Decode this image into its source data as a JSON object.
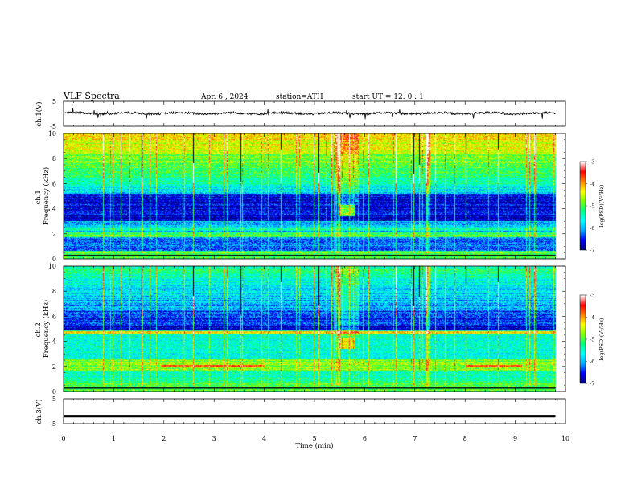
{
  "header": {
    "title": "VLF  Spectra",
    "date": "Apr. 6  , 2024",
    "station": "station=ATH",
    "start_ut": "start  UT  =    12: 0   : 1"
  },
  "chart_data": [
    {
      "type": "line",
      "ylabel": "ch.1(V)",
      "ylim": [
        -5,
        5
      ],
      "yticks": [
        "5",
        "-5"
      ],
      "xlim": [
        0,
        10
      ],
      "waveform_level": 0.2
    },
    {
      "type": "heatmap",
      "ylabel": "ch.1\nFrequency (kHz)",
      "ylim": [
        0,
        10
      ],
      "yticks": [
        "0",
        "2",
        "4",
        "6",
        "8",
        "10"
      ],
      "xlim": [
        0,
        10
      ],
      "colorbar": {
        "label": "log(PSD)(V²/Hz)",
        "range": [
          -7,
          -3
        ],
        "ticks": [
          "-3",
          "-4",
          "-5",
          "-6",
          "-7"
        ]
      }
    },
    {
      "type": "heatmap",
      "ylabel": "ch.2\nFrequency (kHz)",
      "ylim": [
        0,
        10
      ],
      "yticks": [
        "0",
        "2",
        "4",
        "6",
        "8",
        "10"
      ],
      "xlim": [
        0,
        10
      ],
      "colorbar": {
        "label": "log(PSD)(V²/Hz)",
        "range": [
          -7,
          -3
        ],
        "ticks": [
          "-3",
          "-4",
          "-5",
          "-6",
          "-7"
        ]
      }
    },
    {
      "type": "line",
      "ylabel": "ch.3(V)",
      "ylim": [
        -5,
        5
      ],
      "yticks": [
        "5",
        "-5"
      ],
      "xlim": [
        0,
        10
      ],
      "waveform_level": -2.0
    }
  ],
  "xaxis": {
    "label": "Time  (min)",
    "ticks": [
      "0",
      "1",
      "2",
      "3",
      "4",
      "5",
      "6",
      "7",
      "8",
      "9",
      "10"
    ]
  },
  "colors": {
    "colormap": [
      "#000080",
      "#0000ff",
      "#00aaff",
      "#00ffff",
      "#00ff80",
      "#80ff00",
      "#ffff00",
      "#ff8000",
      "#ff0000",
      "#ffffff"
    ]
  }
}
